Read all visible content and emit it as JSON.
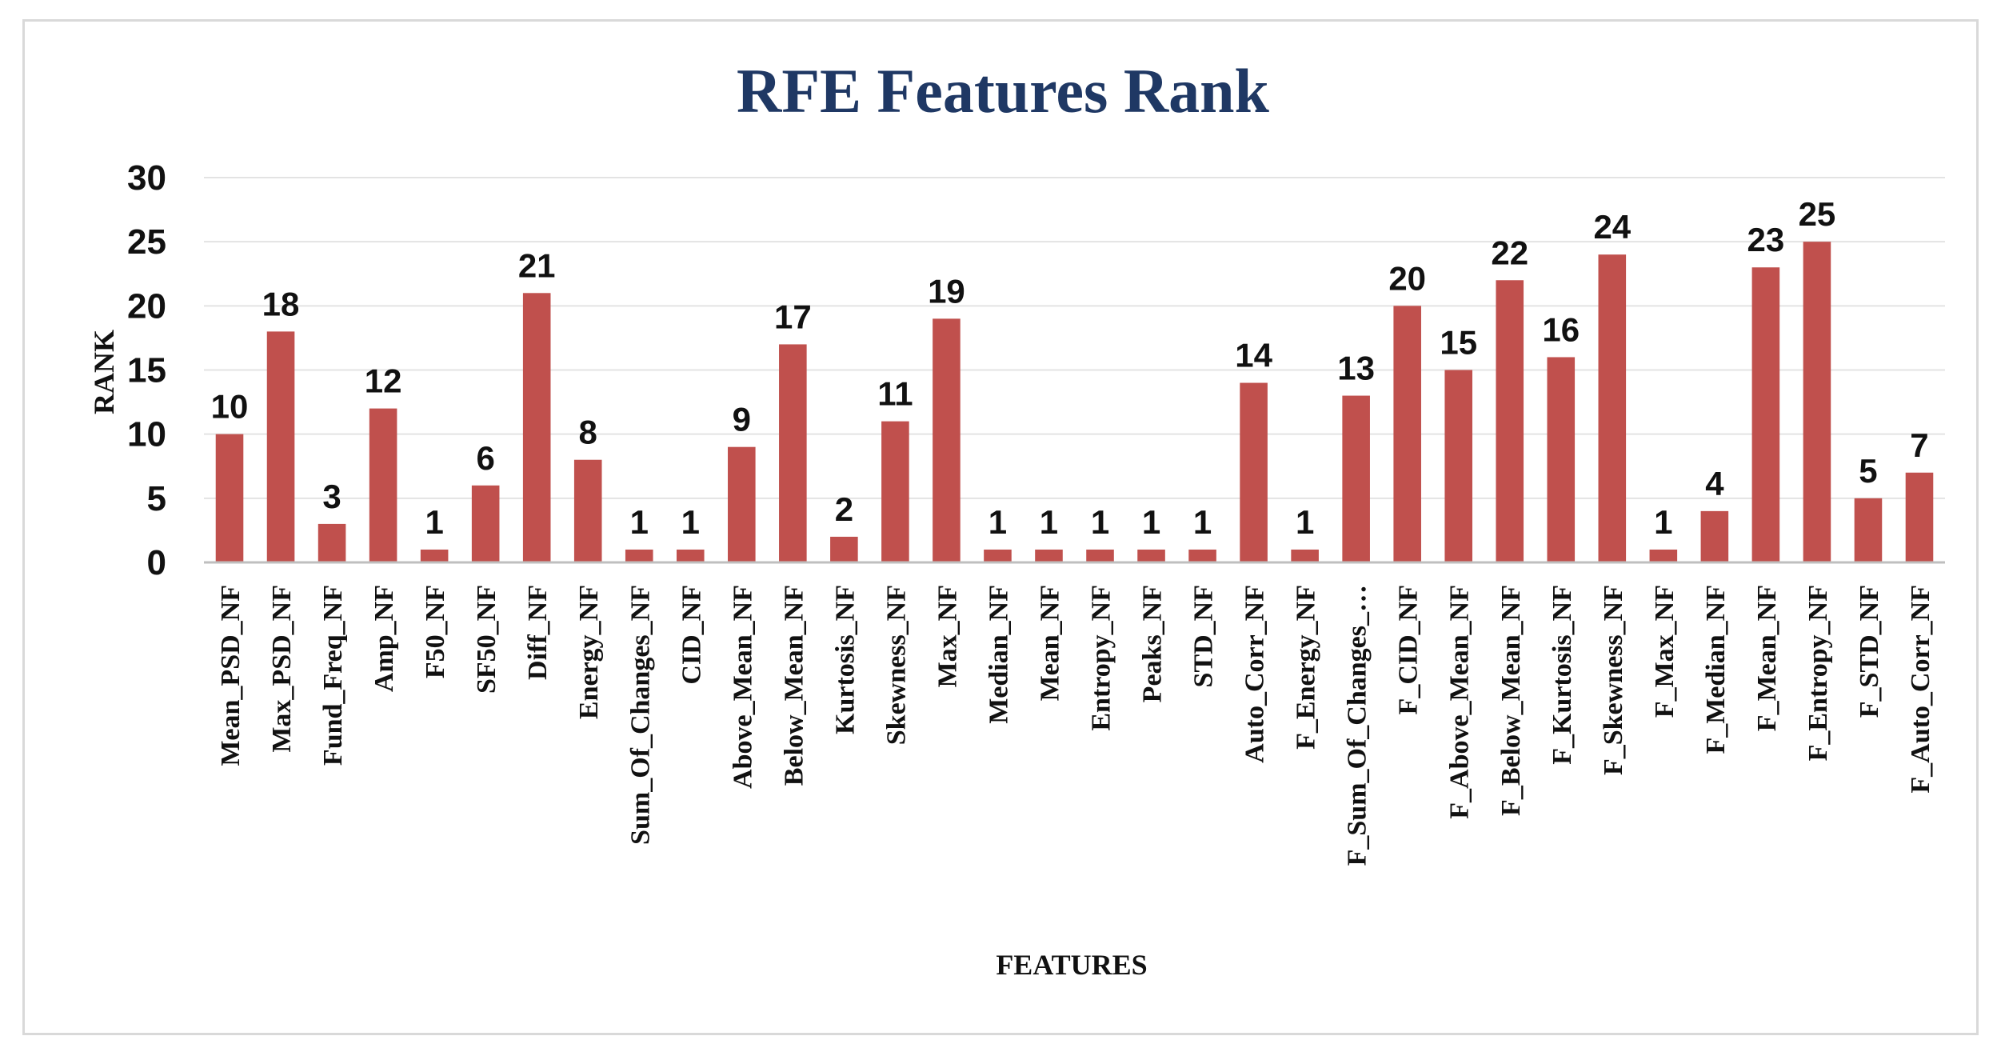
{
  "chart_data": {
    "type": "bar",
    "title": "RFE Features Rank",
    "xlabel": "FEATURES",
    "ylabel": "RANK",
    "ylim": [
      0,
      30
    ],
    "yticks": [
      0,
      5,
      10,
      15,
      20,
      25,
      30
    ],
    "grid": true,
    "bar_color": "#c0504d",
    "categories": [
      "Mean_PSD_NF",
      "Max_PSD_NF",
      "Fund_Freq_NF",
      "Amp_NF",
      "F50_NF",
      "SF50_NF",
      "Diff_NF",
      "Energy_NF",
      "Sum_Of_Changes_NF",
      "CID_NF",
      "Above_Mean_NF",
      "Below_Mean_NF",
      "Kurtosis_NF",
      "Skewness_NF",
      "Max_NF",
      "Median_NF",
      "Mean_NF",
      "Entropy_NF",
      "Peaks_NF",
      "STD_NF",
      "Auto_Corr_NF",
      "F_Energy_NF",
      "F_Sum_Of_Changes_…",
      "F_CID_NF",
      "F_Above_Mean_NF",
      "F_Below_Mean_NF",
      "F_Kurtosis_NF",
      "F_Skewness_NF",
      "F_Max_NF",
      "F_Median_NF",
      "F_Mean_NF",
      "F_Entropy_NF",
      "F_STD_NF",
      "F_Auto_Corr_NF"
    ],
    "values": [
      10,
      18,
      3,
      12,
      1,
      6,
      21,
      8,
      1,
      1,
      9,
      17,
      2,
      11,
      19,
      1,
      1,
      1,
      1,
      1,
      14,
      1,
      13,
      20,
      15,
      22,
      16,
      24,
      1,
      4,
      23,
      25,
      5,
      7
    ]
  }
}
